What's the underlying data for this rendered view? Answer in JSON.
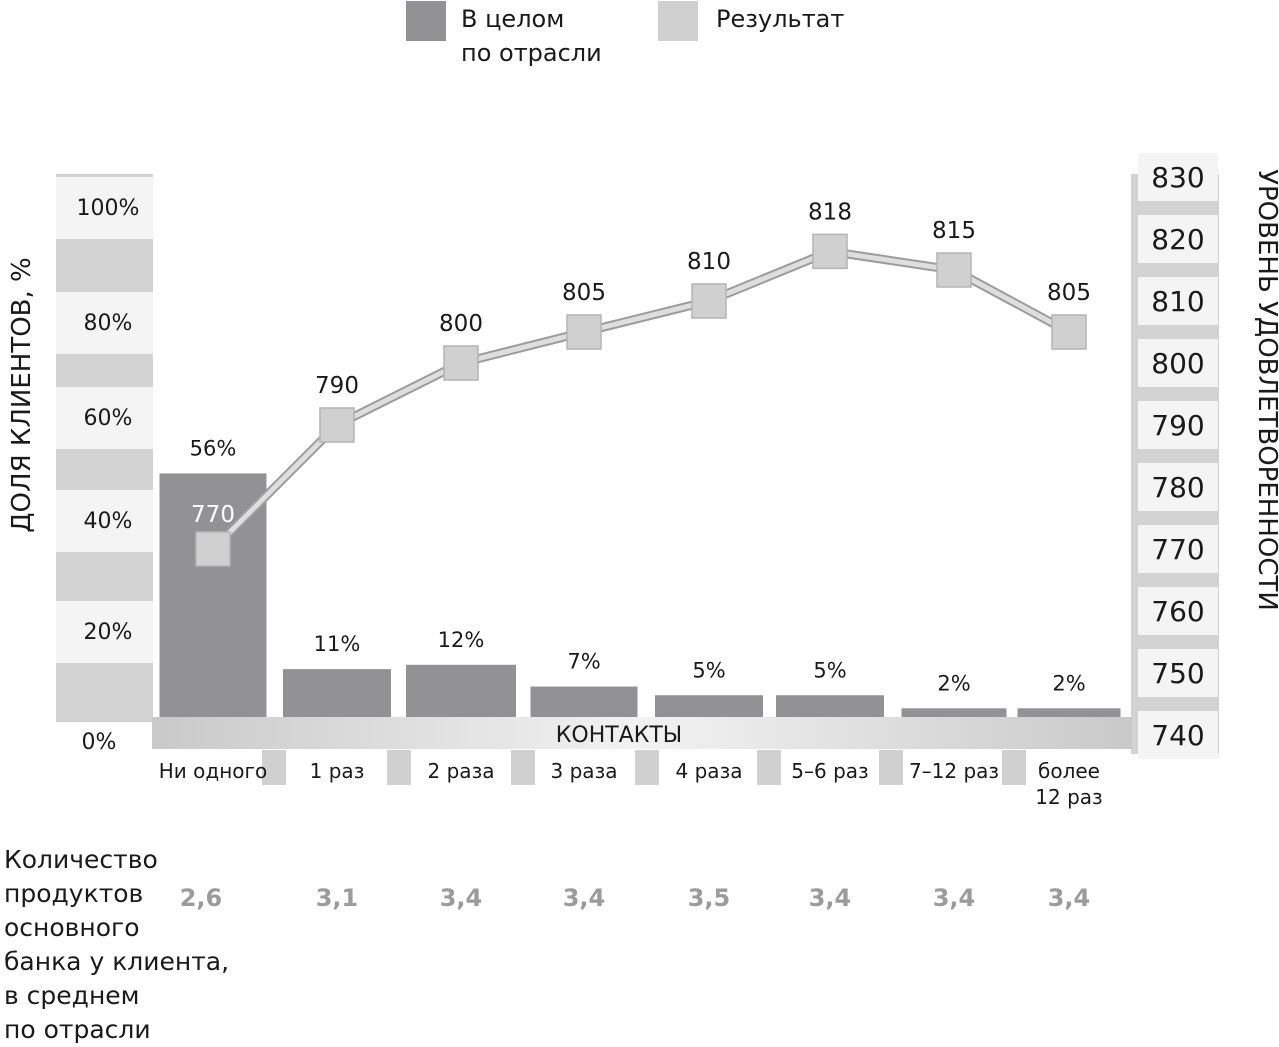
{
  "legend": {
    "industry_label_line1": "В целом",
    "industry_label_line2": "по отрасли",
    "result_label": "Результат",
    "industry_color": "#929294",
    "result_color": "#d0d0d0"
  },
  "left_axis_title": "ДОЛЯ КЛИЕНТОВ, %",
  "right_axis_title": "УРОВЕНЬ УДОВЛЕТВОРЕННОСТИ",
  "contacts_label": "КОНТАКТЫ",
  "products_label": [
    "Количество",
    "продуктов",
    "основного",
    "банка у клиента,",
    "в среднем",
    "по отрасли"
  ],
  "products_values": [
    "2,6",
    "3,1",
    "3,4",
    "3,4",
    "3,5",
    "3,4",
    "3,4",
    "3,4"
  ],
  "chart_data": {
    "type": "bar",
    "categories": [
      [
        "Ни одного"
      ],
      [
        "1 раз"
      ],
      [
        "2 раза"
      ],
      [
        "3 раза"
      ],
      [
        "4 раза"
      ],
      [
        "5–6 раз"
      ],
      [
        "7–12 раз"
      ],
      [
        "более",
        "12 раз"
      ]
    ],
    "series": [
      {
        "name": "В целом по отрасли",
        "type": "bar",
        "axis": "left",
        "values": [
          56,
          11,
          12,
          7,
          5,
          5,
          2,
          2
        ],
        "labels": [
          "56%",
          "11%",
          "12%",
          "7%",
          "5%",
          "5%",
          "2%",
          "2%"
        ]
      },
      {
        "name": "Результат",
        "type": "line",
        "axis": "right",
        "values": [
          770,
          790,
          800,
          805,
          810,
          818,
          815,
          805
        ],
        "labels": [
          "770",
          "790",
          "800",
          "805",
          "810",
          "818",
          "815",
          "805"
        ]
      }
    ],
    "left_axis": {
      "ticks": [
        "100%",
        "80%",
        "60%",
        "40%",
        "20%",
        "0%"
      ],
      "ylim": [
        0,
        100
      ]
    },
    "right_axis": {
      "ticks": [
        "830",
        "820",
        "810",
        "800",
        "790",
        "780",
        "770",
        "760",
        "750",
        "740"
      ],
      "ylim": [
        740,
        830
      ]
    }
  }
}
